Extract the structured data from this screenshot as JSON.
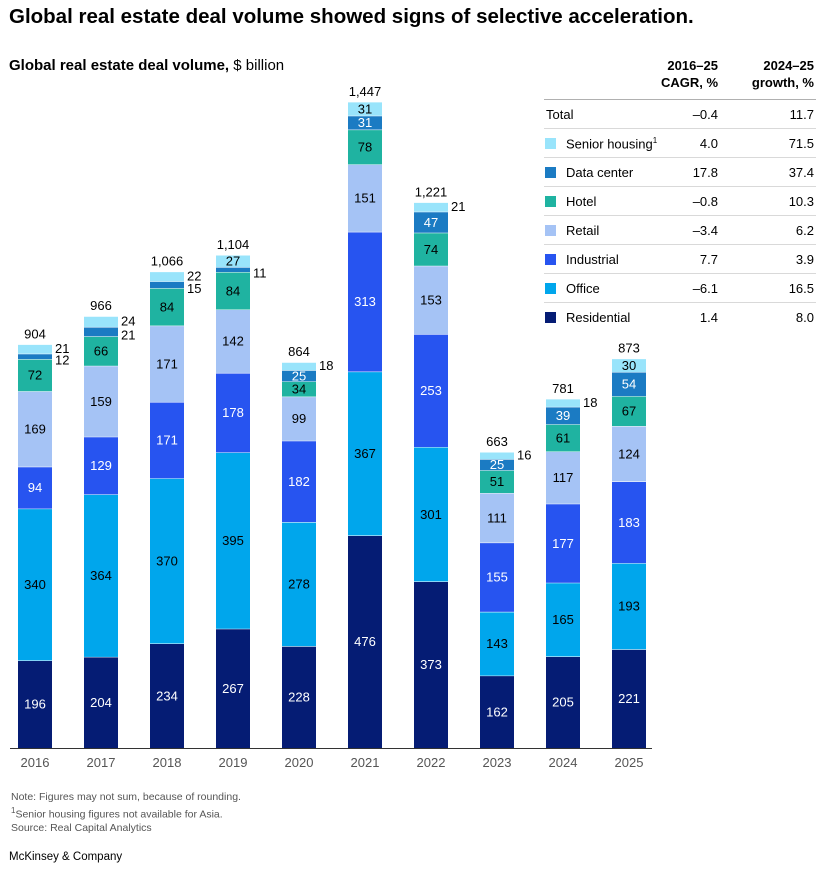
{
  "title": "Global real estate deal volume showed signs of selective acceleration.",
  "subtitle": {
    "bold": "Global real estate deal volume,",
    "unit": "$ billion"
  },
  "table": {
    "col1_line1": "2016–25",
    "col1_line2": "CAGR, %",
    "col2_line1": "2024–25",
    "col2_line2": "growth, %",
    "rows": [
      {
        "label": "Total",
        "footnote": "",
        "cagr": "–0.4",
        "growth": "11.7",
        "color": ""
      },
      {
        "label": "Senior housing",
        "footnote": "1",
        "cagr": "4.0",
        "growth": "71.5",
        "color": "#99e4fb"
      },
      {
        "label": "Data center",
        "footnote": "",
        "cagr": "17.8",
        "growth": "37.4",
        "color": "#1b7bc3"
      },
      {
        "label": "Hotel",
        "footnote": "",
        "cagr": "–0.8",
        "growth": "10.3",
        "color": "#1fb3a1"
      },
      {
        "label": "Retail",
        "footnote": "",
        "cagr": "–3.4",
        "growth": "6.2",
        "color": "#a5c3f5"
      },
      {
        "label": "Industrial",
        "footnote": "",
        "cagr": "7.7",
        "growth": "3.9",
        "color": "#2754f0"
      },
      {
        "label": "Office",
        "footnote": "",
        "cagr": "–6.1",
        "growth": "16.5",
        "color": "#00a6ec"
      },
      {
        "label": "Residential",
        "footnote": "",
        "cagr": "1.4",
        "growth": "8.0",
        "color": "#051c74"
      }
    ]
  },
  "chart_data": {
    "type": "bar",
    "stacked": true,
    "categories": [
      "2016",
      "2017",
      "2018",
      "2019",
      "2020",
      "2021",
      "2022",
      "2023",
      "2024",
      "2025"
    ],
    "totals": [
      "904",
      "966",
      "1,066",
      "1,104",
      "864",
      "1,447",
      "1,221",
      "663",
      "781",
      "873"
    ],
    "series": [
      {
        "name": "Residential",
        "color": "#051c74",
        "label_color": "#ffffff",
        "values": [
          196,
          204,
          234,
          267,
          228,
          476,
          373,
          162,
          205,
          221
        ]
      },
      {
        "name": "Office",
        "color": "#00a6ec",
        "label_color": "#000000",
        "values": [
          340,
          364,
          370,
          395,
          278,
          367,
          301,
          143,
          165,
          193
        ]
      },
      {
        "name": "Industrial",
        "color": "#2754f0",
        "label_color": "#ffffff",
        "values": [
          94,
          129,
          171,
          178,
          182,
          313,
          253,
          155,
          177,
          183
        ]
      },
      {
        "name": "Retail",
        "color": "#a5c3f5",
        "label_color": "#000000",
        "values": [
          169,
          159,
          171,
          142,
          99,
          151,
          153,
          111,
          117,
          124
        ]
      },
      {
        "name": "Hotel",
        "color": "#1fb3a1",
        "label_color": "#000000",
        "values": [
          72,
          66,
          84,
          84,
          34,
          78,
          74,
          51,
          61,
          67
        ]
      },
      {
        "name": "Data center",
        "color": "#1b7bc3",
        "label_color": "#ffffff",
        "values": [
          12,
          21,
          15,
          11,
          25,
          31,
          47,
          25,
          39,
          54
        ]
      },
      {
        "name": "Senior housing",
        "color": "#99e4fb",
        "label_color": "#000000",
        "values": [
          21,
          24,
          22,
          27,
          18,
          31,
          21,
          16,
          18,
          30
        ]
      }
    ],
    "value_labels": [
      [
        "196",
        "340",
        "94",
        "169",
        "72",
        "12",
        "21"
      ],
      [
        "204",
        "364",
        "129",
        "159",
        "66",
        "21",
        "24"
      ],
      [
        "234",
        "370",
        "171",
        "171",
        "84",
        "15",
        "22"
      ],
      [
        "267",
        "395",
        "178",
        "142",
        "84",
        "11",
        "27"
      ],
      [
        "228",
        "278",
        "182",
        "99",
        "34",
        "25",
        "18"
      ],
      [
        "476",
        "367",
        "313",
        "151",
        "78",
        "31",
        "31"
      ],
      [
        "373",
        "301",
        "253",
        "153",
        "74",
        "47",
        "21"
      ],
      [
        "162",
        "143",
        "155",
        "111",
        "51",
        "25",
        "16"
      ],
      [
        "205",
        "165",
        "177",
        "117",
        "61",
        "39",
        "18"
      ],
      [
        "221",
        "193",
        "183",
        "124",
        "67",
        "54",
        "30"
      ]
    ],
    "ylim": [
      0,
      1500
    ],
    "xlabel": "",
    "ylabel": ""
  },
  "notes": {
    "line1": "Note: Figures may not sum, because of rounding.",
    "line2_mark": "1",
    "line2": "Senior housing figures not available for Asia.",
    "line3": "Source: Real Capital Analytics"
  },
  "brand": "McKinsey & Company"
}
